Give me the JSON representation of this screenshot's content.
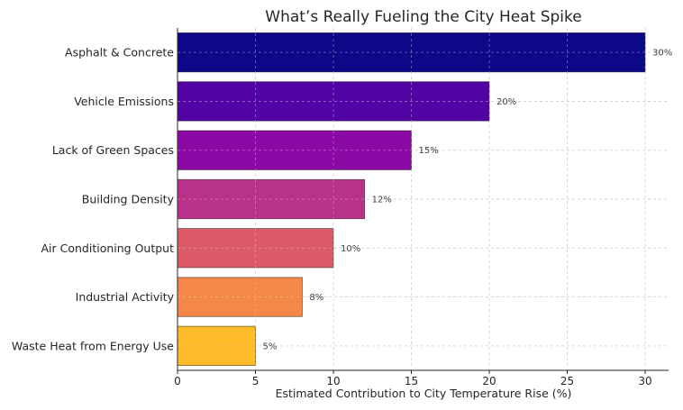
{
  "chart_data": {
    "type": "bar",
    "orientation": "horizontal",
    "title": "What’s Really Fueling the City Heat Spike",
    "xlabel": "Estimated Contribution to City Temperature Rise (%)",
    "ylabel": "",
    "xlim": [
      0,
      31.5
    ],
    "xticks": [
      0,
      5,
      10,
      15,
      20,
      25,
      30
    ],
    "grid": true,
    "categories": [
      "Asphalt & Concrete",
      "Vehicle Emissions",
      "Lack of Green Spaces",
      "Building Density",
      "Air Conditioning Output",
      "Industrial Activity",
      "Waste Heat from Energy Use"
    ],
    "values": [
      30,
      20,
      15,
      12,
      10,
      8,
      5
    ],
    "value_labels": [
      "30%",
      "20%",
      "15%",
      "12%",
      "10%",
      "8%",
      "5%"
    ],
    "colors": [
      "#0d0887",
      "#5302a3",
      "#8b0aa5",
      "#b83289",
      "#db5c68",
      "#f48849",
      "#febc2a"
    ]
  }
}
